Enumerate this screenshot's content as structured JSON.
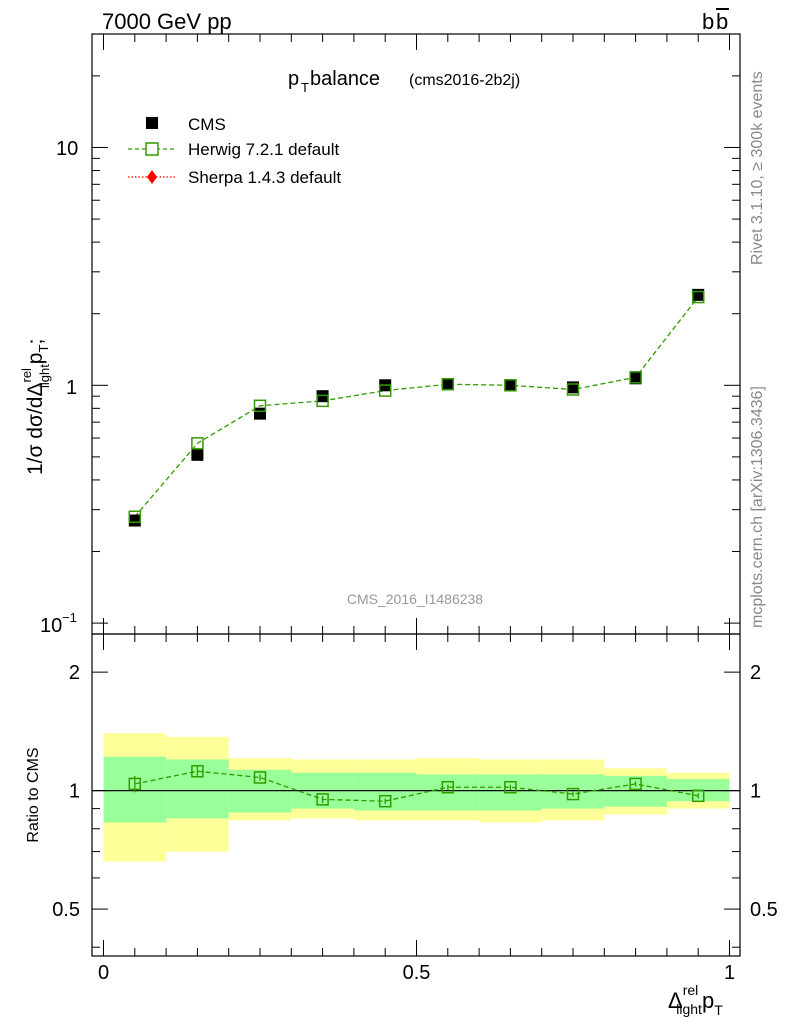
{
  "header": {
    "energy_label": "7000 GeV pp",
    "process_label": "b",
    "process_label_bar": "b"
  },
  "side_text": {
    "rivet": "Rivet 3.1.10, ≥ 300k events",
    "mcplots": "mcplots.cern.ch [arXiv:1306.3436]"
  },
  "main_plot": {
    "title_main": "p",
    "title_sub": "T",
    "title_rest": " balance",
    "title_tag": "(cms2016-2b2j)",
    "watermark": "CMS_2016_I1486238",
    "ylabel": {
      "p1": "1/σ dσ/dΔ",
      "sup1": "rel",
      "sub1": "light",
      "p2": "p",
      "sub2": "T",
      "p3": ";"
    },
    "yticks": [
      {
        "label_base": "10",
        "label_exp": "−1"
      },
      {
        "label_base": "1",
        "label_exp": ""
      },
      {
        "label_base": "10",
        "label_exp": ""
      }
    ]
  },
  "legend": {
    "items": [
      {
        "label": "CMS",
        "color": "#000000",
        "marker": "filled-square"
      },
      {
        "label": "Herwig 7.2.1 default",
        "color": "#339900",
        "marker": "open-square"
      },
      {
        "label": "Sherpa 1.4.3 default",
        "color": "#ff0000",
        "marker": "filled-diamond"
      }
    ]
  },
  "ratio_plot": {
    "ylabel": "Ratio to CMS",
    "yticks_left": [
      "0.5",
      "1",
      "2"
    ],
    "yticks_right": [
      "0.5",
      "1",
      "2"
    ]
  },
  "xaxis": {
    "ticks": [
      "0",
      "0.5",
      "1"
    ],
    "label_main": "Δ",
    "label_sup": "rel",
    "label_sub": "light",
    "label_p": "p",
    "label_psub": "T"
  },
  "chart_data": {
    "type": "scatter",
    "xlim": [
      -0.02,
      1.02
    ],
    "ylim_main": [
      0.09,
      30
    ],
    "log_y_main": true,
    "ylim_ratio": [
      0.38,
      2.5
    ],
    "log_y_ratio": true,
    "x": [
      0.05,
      0.15,
      0.25,
      0.35,
      0.45,
      0.55,
      0.65,
      0.75,
      0.85,
      0.95
    ],
    "bins": [
      [
        0,
        0.1
      ],
      [
        0.1,
        0.2
      ],
      [
        0.2,
        0.3
      ],
      [
        0.3,
        0.4
      ],
      [
        0.4,
        0.5
      ],
      [
        0.5,
        0.6
      ],
      [
        0.6,
        0.7
      ],
      [
        0.7,
        0.8
      ],
      [
        0.8,
        0.9
      ],
      [
        0.9,
        1.0
      ]
    ],
    "series": [
      {
        "name": "CMS",
        "values": [
          0.27,
          0.51,
          0.76,
          0.9,
          1.0,
          1.01,
          1.0,
          0.98,
          1.07,
          2.4
        ]
      },
      {
        "name": "Herwig 7.2.1 default",
        "values": [
          0.28,
          0.57,
          0.82,
          0.86,
          0.95,
          1.01,
          1.0,
          0.96,
          1.08,
          2.35
        ]
      }
    ],
    "ratio": [
      1.04,
      1.12,
      1.08,
      0.95,
      0.94,
      1.02,
      1.02,
      0.98,
      1.04,
      0.97
    ],
    "ratio_err": [
      0.05,
      0.03,
      0.02,
      0.02,
      0.015,
      0.015,
      0.015,
      0.015,
      0.015,
      0.015
    ],
    "band_stat": [
      [
        0.83,
        1.22
      ],
      [
        0.85,
        1.2
      ],
      [
        0.88,
        1.13
      ],
      [
        0.9,
        1.11
      ],
      [
        0.89,
        1.11
      ],
      [
        0.89,
        1.1
      ],
      [
        0.89,
        1.1
      ],
      [
        0.9,
        1.1
      ],
      [
        0.91,
        1.09
      ],
      [
        0.94,
        1.07
      ]
    ],
    "band_total": [
      [
        0.66,
        1.4
      ],
      [
        0.7,
        1.37
      ],
      [
        0.84,
        1.21
      ],
      [
        0.85,
        1.2
      ],
      [
        0.84,
        1.2
      ],
      [
        0.84,
        1.21
      ],
      [
        0.83,
        1.2
      ],
      [
        0.84,
        1.2
      ],
      [
        0.87,
        1.14
      ],
      [
        0.9,
        1.11
      ]
    ],
    "colors": {
      "stat_band": "#99ff99",
      "total_band": "#ffff99",
      "herwig": "#339900",
      "sherpa": "#ff0000",
      "data": "#000000"
    }
  }
}
